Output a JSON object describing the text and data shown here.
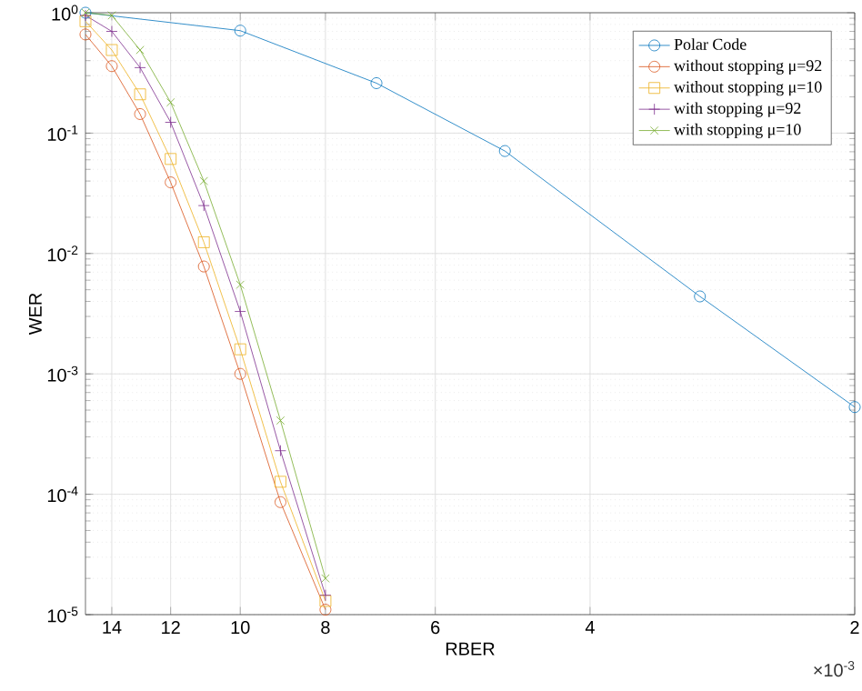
{
  "chart_data": {
    "type": "line",
    "xlabel": "RBER",
    "ylabel": "WER",
    "log": "xy",
    "grid": true,
    "legend": "top right",
    "annotations": [
      "×10$^{-3}$"
    ],
    "xlim": [
      15,
      2
    ],
    "xticks": [
      14,
      12,
      10,
      8,
      6,
      4,
      2
    ],
    "ylim": [
      1e-05,
      1
    ],
    "yticks": [
      {
        "value": 1e-05,
        "label": "10$^{-5}$"
      },
      {
        "value": 0.0001,
        "label": "10$^{-4}$"
      },
      {
        "value": 0.001,
        "label": "10$^{-3}$"
      },
      {
        "value": 0.01,
        "label": "10$^{-2}$"
      },
      {
        "value": 0.1,
        "label": "10$^{-1}$"
      },
      {
        "value": 1,
        "label": "10$^{0}$"
      }
    ],
    "series": [
      {
        "name": "Polar Code",
        "color": "#0072bd",
        "marker": "circle",
        "x": [
          15,
          10,
          7,
          5,
          3,
          2
        ],
        "values": [
          1,
          0.71,
          0.26,
          0.071,
          0.0044,
          0.00053
        ]
      },
      {
        "name": "without stopping μ=92",
        "color": "#d95319",
        "marker": "circle",
        "x": [
          15,
          14,
          13,
          12,
          11,
          10,
          9,
          8
        ],
        "values": [
          0.66,
          0.36,
          0.144,
          0.039,
          0.0078,
          0.001,
          8.6e-05,
          1.1e-05
        ]
      },
      {
        "name": "without stopping μ=10",
        "color": "#edb120",
        "marker": "square",
        "x": [
          15,
          14,
          13,
          12,
          11,
          10,
          9,
          8
        ],
        "values": [
          0.85,
          0.49,
          0.21,
          0.061,
          0.0124,
          0.0016,
          0.000127,
          1.3e-05
        ]
      },
      {
        "name": "with stopping μ=92",
        "color": "#7e2f8e",
        "marker": "plus",
        "x": [
          15,
          14,
          13,
          12,
          11,
          10,
          9,
          8
        ],
        "values": [
          0.95,
          0.7,
          0.35,
          0.123,
          0.025,
          0.0033,
          0.00023,
          1.45e-05
        ]
      },
      {
        "name": "with stopping μ=10",
        "color": "#77ac30",
        "marker": "cross",
        "x": [
          15,
          14,
          13,
          12,
          11,
          10,
          9,
          8
        ],
        "values": [
          1,
          0.95,
          0.49,
          0.18,
          0.04,
          0.0055,
          0.00041,
          2e-05
        ]
      }
    ]
  }
}
